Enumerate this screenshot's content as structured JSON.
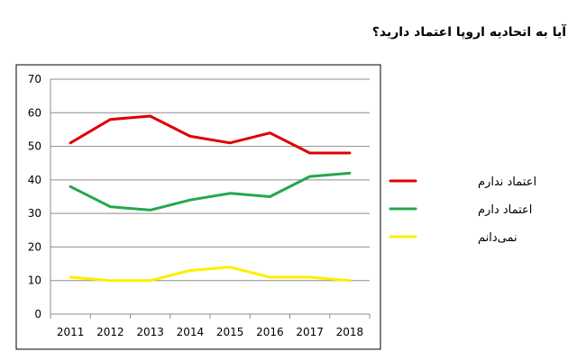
{
  "title": "آیا به اتحادیه اروپا اعتماد دارید؟",
  "chart_data": {
    "type": "line",
    "title": "آیا به اتحادیه اروپا اعتماد دارید؟",
    "xlabel": "",
    "ylabel": "",
    "x": [
      "2011",
      "2012",
      "2013",
      "2014",
      "2015",
      "2016",
      "2017",
      "2018"
    ],
    "ylim": [
      0,
      70
    ],
    "yticks": [
      0,
      10,
      20,
      30,
      40,
      50,
      60,
      70
    ],
    "grid": true,
    "legend_position": "right",
    "series": [
      {
        "name": "اعتماد ندارم",
        "color": "#e00000",
        "values": [
          51,
          58,
          59,
          53,
          51,
          54,
          48,
          48
        ]
      },
      {
        "name": "اعتماد دارم",
        "color": "#22a84a",
        "values": [
          38,
          32,
          31,
          34,
          36,
          35,
          41,
          42
        ]
      },
      {
        "name": "نمی‌دانم",
        "color": "#ffee00",
        "values": [
          11,
          10,
          10,
          13,
          14,
          11,
          11,
          10
        ]
      }
    ]
  }
}
